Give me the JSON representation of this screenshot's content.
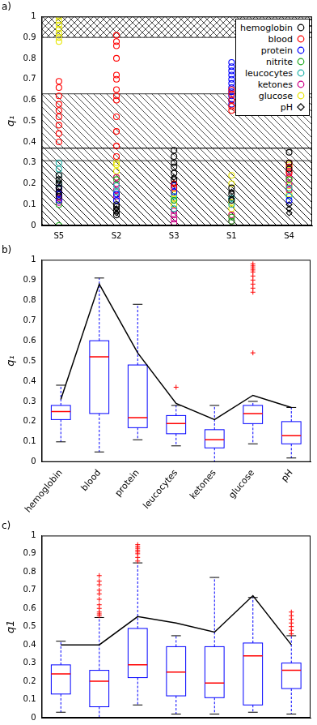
{
  "chart_data": [
    {
      "type": "scatter",
      "title": "a)",
      "ylabel": "q₁",
      "categories": [
        "S5",
        "S2",
        "S3",
        "S1",
        "S4"
      ],
      "ylim": [
        0,
        1
      ],
      "yticks": [
        0,
        0.1,
        0.2,
        0.3,
        0.4,
        0.5,
        0.6,
        0.7,
        0.8,
        0.9,
        1
      ],
      "grid": false,
      "legend": "upper right",
      "bands": [
        {
          "from": 0.9,
          "to": 1,
          "line_style": "crosshatch"
        },
        {
          "from": 0.37,
          "to": 0.63,
          "line_style": "hatch"
        },
        {
          "from": 0,
          "to": 0.37,
          "line_style": "hatch"
        },
        {
          "from": 0,
          "to": 0.31,
          "line_style": "hatch"
        }
      ],
      "series": [
        {
          "name": "hemoglobin",
          "color": "#000000",
          "marker": "circle",
          "values": [
            [
              0.14,
              0.16,
              0.18,
              0.2,
              0.22,
              0.24
            ],
            [
              0.05,
              0.07,
              0.09,
              0.1
            ],
            [
              0.22,
              0.25,
              0.28,
              0.3,
              0.33,
              0.36
            ],
            [
              0.12,
              0.15,
              0.18
            ],
            [
              0.27,
              0.3,
              0.35
            ]
          ]
        },
        {
          "name": "blood",
          "color": "#ff0000",
          "marker": "circle",
          "values": [
            [
              0.4,
              0.44,
              0.48,
              0.52,
              0.55,
              0.58,
              0.62,
              0.66,
              0.69
            ],
            [
              0.33,
              0.38,
              0.45,
              0.52,
              0.6,
              0.62,
              0.65,
              0.7,
              0.72,
              0.8,
              0.86,
              0.88,
              0.91
            ],
            [
              0.18,
              0.2
            ],
            [
              0.55,
              0.57,
              0.6,
              0.63,
              0.65
            ],
            [
              0.25,
              0.28,
              0.3
            ]
          ]
        },
        {
          "name": "protein",
          "color": "#0000ff",
          "marker": "circle",
          "values": [
            [
              0.12,
              0.15,
              0.18
            ],
            [
              0.12,
              0.15
            ],
            [
              0.16,
              0.19
            ],
            [
              0.58,
              0.6,
              0.62,
              0.64,
              0.66,
              0.68,
              0.7,
              0.72,
              0.74,
              0.76,
              0.78
            ],
            [
              0.12
            ]
          ]
        },
        {
          "name": "nitrite",
          "color": "#22aa22",
          "marker": "circle",
          "values": [
            [
              0,
              0.1
            ],
            [
              0.22
            ],
            [
              0.12
            ],
            [
              0.02,
              0.04
            ],
            [
              0.22
            ]
          ]
        },
        {
          "name": "leucocytes",
          "color": "#20b2aa",
          "marker": "circle",
          "values": [
            [
              0.2,
              0.24,
              0.27,
              0.3
            ],
            [
              0.16,
              0.19
            ],
            [
              0.08,
              0.12,
              0.14
            ],
            [
              0.1,
              0.13
            ],
            [
              0.14,
              0.18
            ]
          ]
        },
        {
          "name": "ketones",
          "color": "#cc0088",
          "marker": "circle",
          "values": [
            [
              0.11,
              0.13,
              0.16
            ],
            [
              0.14,
              0.17,
              0.2,
              0.23
            ],
            [
              0.01,
              0.03,
              0.05,
              0.07
            ],
            [
              0.02,
              0.05
            ],
            [
              0.17,
              0.2,
              0.23,
              0.26
            ]
          ]
        },
        {
          "name": "glucose",
          "color": "#e6e600",
          "marker": "circle",
          "values": [
            [
              0.88,
              0.9,
              0.92,
              0.94,
              0.96,
              0.98,
              1
            ],
            [
              0.23,
              0.26,
              0.29,
              0.3
            ],
            [
              0.1,
              0.13,
              0.15
            ],
            [
              0.05,
              0.08,
              0.11,
              0.2,
              0.24
            ],
            [
              0.15,
              0.19,
              0.22,
              0.26,
              0.29
            ]
          ]
        },
        {
          "name": "pH",
          "color": "#000000",
          "marker": "diamond",
          "values": [
            [
              0.15,
              0.18,
              0.21
            ],
            [
              0.06,
              0.08
            ],
            [
              0.2,
              0.23
            ],
            [
              0.13,
              0.16
            ],
            [
              0.06,
              0.08,
              0.1
            ]
          ]
        }
      ]
    },
    {
      "type": "box",
      "title": "b)",
      "ylabel": "q₁",
      "categories": [
        "hemoglobin",
        "blood",
        "protein",
        "leucocytes",
        "ketones",
        "glucose",
        "pH"
      ],
      "ylim": [
        0,
        1
      ],
      "yticks": [
        0,
        0.1,
        0.2,
        0.3,
        0.4,
        0.5,
        0.6,
        0.7,
        0.8,
        0.9,
        1
      ],
      "grid": false,
      "boxes": [
        {
          "low": 0.1,
          "q1": 0.21,
          "median": 0.25,
          "q3": 0.28,
          "high": 0.38,
          "outliers": []
        },
        {
          "low": 0.05,
          "q1": 0.24,
          "median": 0.52,
          "q3": 0.6,
          "high": 0.91,
          "outliers": []
        },
        {
          "low": 0.11,
          "q1": 0.17,
          "median": 0.22,
          "q3": 0.48,
          "high": 0.78,
          "outliers": []
        },
        {
          "low": 0.08,
          "q1": 0.14,
          "median": 0.19,
          "q3": 0.23,
          "high": 0.28,
          "outliers": [
            0.37
          ]
        },
        {
          "low": 0,
          "q1": 0.07,
          "median": 0.11,
          "q3": 0.16,
          "high": 0.28,
          "outliers": []
        },
        {
          "low": 0.09,
          "q1": 0.19,
          "median": 0.24,
          "q3": 0.28,
          "high": 0.3,
          "outliers": [
            0.54,
            0.84,
            0.86,
            0.88,
            0.9,
            0.92,
            0.94,
            0.95,
            0.96,
            0.97,
            0.98
          ]
        },
        {
          "low": 0.02,
          "q1": 0.09,
          "median": 0.13,
          "q3": 0.2,
          "high": 0.27,
          "outliers": []
        }
      ],
      "line": {
        "color": "#000000",
        "values": [
          0.31,
          0.88,
          0.54,
          0.29,
          0.21,
          0.33,
          0.27
        ]
      }
    },
    {
      "type": "box",
      "title": "c)",
      "ylabel": "q1",
      "categories": [
        null,
        null,
        null,
        null,
        null,
        null,
        null
      ],
      "ylim": [
        0,
        1
      ],
      "yticks": [
        0,
        0.1,
        0.2,
        0.3,
        0.4,
        0.5,
        0.6,
        0.7,
        0.8,
        0.9,
        1
      ],
      "grid": false,
      "tick_labels": "y",
      "boxes": [
        {
          "low": 0.03,
          "q1": 0.13,
          "median": 0.24,
          "q3": 0.29,
          "high": 0.42,
          "outliers": []
        },
        {
          "low": 0,
          "q1": 0.06,
          "median": 0.2,
          "q3": 0.26,
          "high": 0.55,
          "outliers": [
            0.56,
            0.57,
            0.58,
            0.6,
            0.62,
            0.65,
            0.68,
            0.7,
            0.73,
            0.75,
            0.78
          ]
        },
        {
          "low": 0.07,
          "q1": 0.22,
          "median": 0.29,
          "q3": 0.49,
          "high": 0.85,
          "outliers": [
            0.86,
            0.88,
            0.9,
            0.91,
            0.92,
            0.93,
            0.94,
            0.95
          ]
        },
        {
          "low": 0.02,
          "q1": 0.12,
          "median": 0.25,
          "q3": 0.39,
          "high": 0.45,
          "outliers": []
        },
        {
          "low": 0.02,
          "q1": 0.11,
          "median": 0.19,
          "q3": 0.39,
          "high": 0.77,
          "outliers": []
        },
        {
          "low": 0.03,
          "q1": 0.07,
          "median": 0.34,
          "q3": 0.41,
          "high": 0.66,
          "outliers": []
        },
        {
          "low": 0.02,
          "q1": 0.16,
          "median": 0.26,
          "q3": 0.3,
          "high": 0.45,
          "outliers": [
            0.46,
            0.48,
            0.5,
            0.52,
            0.54,
            0.56,
            0.58
          ]
        }
      ],
      "line": {
        "color": "#000000",
        "values": [
          0.4,
          0.4,
          0.555,
          0.52,
          0.47,
          0.67,
          0.4
        ]
      }
    }
  ]
}
